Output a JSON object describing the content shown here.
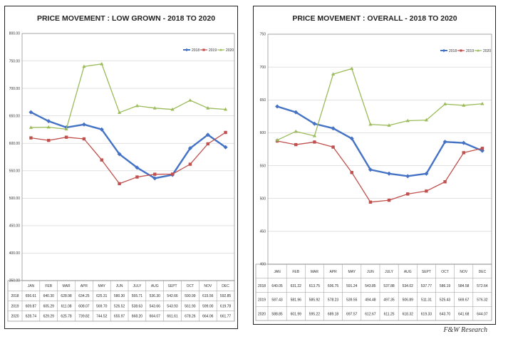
{
  "chart_data": [
    {
      "type": "line",
      "title": "PRICE MOVEMENT : LOW GROWN  -  2018 TO 2020",
      "categories": [
        "JAN",
        "FEB",
        "MAR",
        "APR",
        "MAY",
        "JUN",
        "JULY",
        "AUG",
        "SEPT",
        "OCT",
        "NOV",
        "DEC"
      ],
      "ylim": [
        350,
        800
      ],
      "yticks": [
        350,
        400,
        450,
        500,
        550,
        600,
        650,
        700,
        750,
        800
      ],
      "ytick_labels": [
        "350.00",
        "400.00",
        "450.00",
        "500.00",
        "550.00",
        "600.00",
        "650.00",
        "700.00",
        "750.00",
        "800.00"
      ],
      "series": [
        {
          "name": "2018",
          "color": "#4472c4",
          "values": [
            656.61,
            640.3,
            628.98,
            634.25,
            625.31,
            580.3,
            555.71,
            536.3,
            542.66,
            590.99,
            615.56,
            592.85
          ],
          "labels": [
            "656.61",
            "640.30",
            "628.98",
            "634.25",
            "625.31",
            "580.30",
            "555.71",
            "536.30",
            "542.66",
            "590.99",
            "615.56",
            "592.85"
          ]
        },
        {
          "name": "2019",
          "color": "#c0504d",
          "values": [
            609.87,
            605.29,
            611.08,
            608.07,
            569.7,
            526.52,
            538.63,
            543.66,
            543.93,
            561.9,
            599.0,
            619.78
          ],
          "labels": [
            "609.87",
            "605.29",
            "611.08",
            "608.07",
            "569.70",
            "526.52",
            "538.63",
            "543.66",
            "543.93",
            "561.90",
            "599.00",
            "619.78"
          ]
        },
        {
          "name": "2020",
          "color": "#9bbb59",
          "values": [
            628.74,
            629.29,
            625.78,
            739.82,
            744.52,
            655.97,
            668.2,
            664.07,
            661.61,
            678.26,
            664.06,
            661.77
          ],
          "labels": [
            "628.74",
            "629.29",
            "625.78",
            "739.82",
            "744.52",
            "655.97",
            "668.20",
            "664.07",
            "661.61",
            "678.26",
            "664.06",
            "661.77"
          ]
        }
      ]
    },
    {
      "type": "line",
      "title": "PRICE MOVEMENT : OVERALL  -  2018 TO 2020",
      "categories": [
        "JAN",
        "FEB",
        "MAR",
        "APR",
        "MAY",
        "JUN",
        "JULY",
        "AUG",
        "SEPT",
        "OCT",
        "NOV",
        "DEC"
      ],
      "ylim": [
        400,
        750
      ],
      "yticks": [
        400,
        450,
        500,
        550,
        600,
        650,
        700,
        750
      ],
      "ytick_labels": [
        "400",
        "450",
        "500",
        "550",
        "600",
        "650",
        "700",
        "750"
      ],
      "series": [
        {
          "name": "2018",
          "color": "#4472c4",
          "values": [
            640.05,
            631.22,
            613.75,
            606.75,
            591.24,
            543.85,
            537.88,
            534.02,
            537.77,
            586.19,
            584.58,
            572.64
          ],
          "labels": [
            "640.05",
            "631.22",
            "613.75",
            "606.75",
            "591.24",
            "543.85",
            "537.88",
            "534.02",
            "537.77",
            "586.19",
            "584.58",
            "572.64"
          ]
        },
        {
          "name": "2019",
          "color": "#c0504d",
          "values": [
            587.43,
            581.96,
            585.92,
            578.23,
            539.55,
            494.48,
            497.35,
            506.89,
            511.31,
            525.43,
            569.67,
            576.32
          ],
          "labels": [
            "587.43",
            "581.96",
            "585.92",
            "578.23",
            "539.55",
            "494.48",
            "497.35",
            "506.89",
            "511.31",
            "525.43",
            "569.67",
            "576.32"
          ]
        },
        {
          "name": "2020",
          "color": "#9bbb59",
          "values": [
            588.85,
            601.99,
            595.22,
            689.18,
            697.57,
            612.67,
            611.25,
            618.32,
            619.33,
            643.7,
            641.68,
            644.07
          ],
          "labels": [
            "588.85",
            "601.99",
            "595.22",
            "689.18",
            "697.57",
            "612.67",
            "611.25",
            "618.32",
            "619.33",
            "643.70",
            "641.68",
            "644.07"
          ]
        }
      ]
    }
  ],
  "footer": "F&W Research"
}
